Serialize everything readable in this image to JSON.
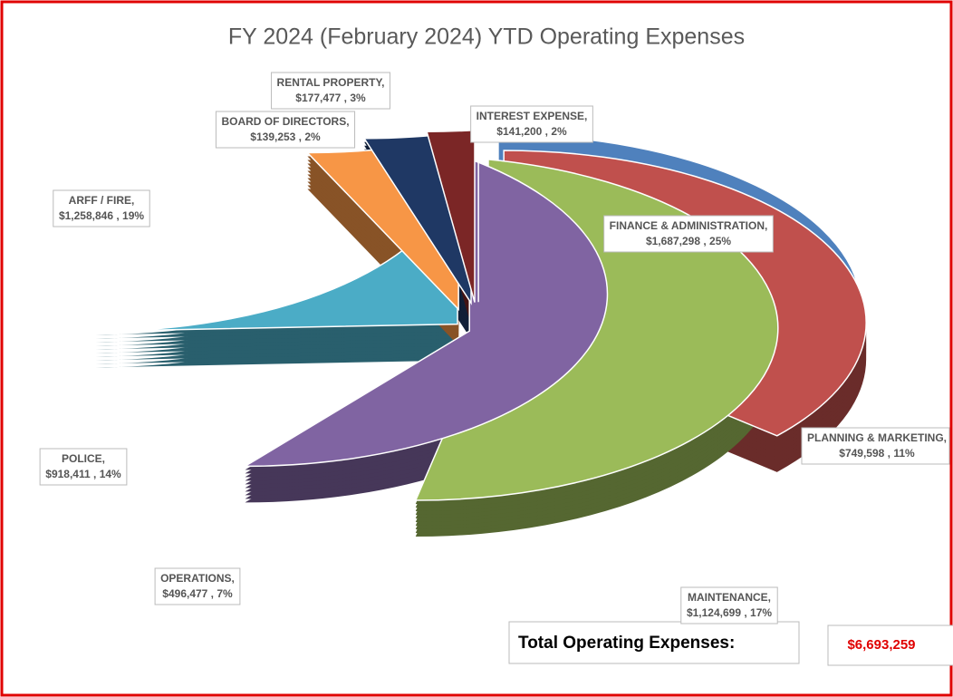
{
  "chart_data": {
    "type": "pie",
    "title": "FY 2024 (February 2024) YTD Operating Expenses",
    "categories": [
      "FINANCE & ADMINISTRATION,",
      "PLANNING & MARKETING,",
      "MAINTENANCE,",
      "OPERATIONS,",
      "POLICE,",
      "ARFF / FIRE,",
      "BOARD OF DIRECTORS,",
      "RENTAL PROPERTY,",
      "INTEREST EXPENSE,"
    ],
    "values": [
      1687298,
      749598,
      1124699,
      496477,
      918411,
      1258846,
      139253,
      177477,
      141200
    ],
    "value_labels": [
      "$1,687,298 ,",
      "$749,598 ,",
      "$1,124,699 ,",
      "$496,477 ,",
      "$918,411 ,",
      "$1,258,846 ,",
      "$139,253 ,",
      "$177,477 ,",
      "$141,200 ,"
    ],
    "percentages": [
      25,
      11,
      17,
      7,
      14,
      19,
      2,
      3,
      2
    ],
    "percent_labels": [
      "25%",
      "11%",
      "17%",
      "7%",
      "14%",
      "19%",
      "2%",
      "3%",
      "2%"
    ],
    "colors": [
      "#4f81bd",
      "#c0504d",
      "#9bbb59",
      "#8064a2",
      "#4bacc6",
      "#f79646",
      "#1f3864",
      "#7b2626",
      "#5b7a2a"
    ],
    "total_label": "Total Operating Expenses:",
    "total": 6693259,
    "total_value_label": "$6,693,259"
  }
}
